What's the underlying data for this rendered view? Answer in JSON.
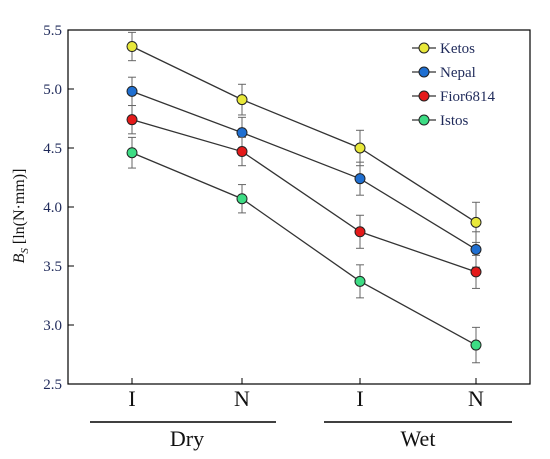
{
  "chart_data": {
    "type": "line",
    "title": "",
    "ylabel_main": "B",
    "ylabel_sub": "S",
    "ylabel_unit": " [ln(N·mm)]",
    "xlabel": "",
    "ylim": [
      2.5,
      5.5
    ],
    "yticks": [
      "2.5",
      "3.0",
      "3.5",
      "4.0",
      "4.5",
      "5.0",
      "5.5"
    ],
    "categories": [
      "I",
      "N",
      "I",
      "N"
    ],
    "groups": [
      {
        "label": "Dry",
        "span": [
          0,
          1
        ]
      },
      {
        "label": "Wet",
        "span": [
          2,
          3
        ]
      }
    ],
    "legend_position": "top-right",
    "grid": false,
    "series": [
      {
        "name": "Ketos",
        "color": "#e8e83a",
        "values": [
          5.36,
          4.91,
          4.5,
          3.87
        ],
        "errors": [
          0.12,
          0.13,
          0.15,
          0.17
        ]
      },
      {
        "name": "Nepal",
        "color": "#1f6fd1",
        "values": [
          4.98,
          4.63,
          4.24,
          3.64
        ],
        "errors": [
          0.12,
          0.13,
          0.14,
          0.15
        ]
      },
      {
        "name": "Fior6814",
        "color": "#e41a1a",
        "values": [
          4.74,
          4.47,
          3.79,
          3.45
        ],
        "errors": [
          0.12,
          0.12,
          0.14,
          0.14
        ]
      },
      {
        "name": "Istos",
        "color": "#3ddc84",
        "values": [
          4.46,
          4.07,
          3.37,
          2.83
        ],
        "errors": [
          0.13,
          0.12,
          0.14,
          0.15
        ]
      }
    ]
  }
}
